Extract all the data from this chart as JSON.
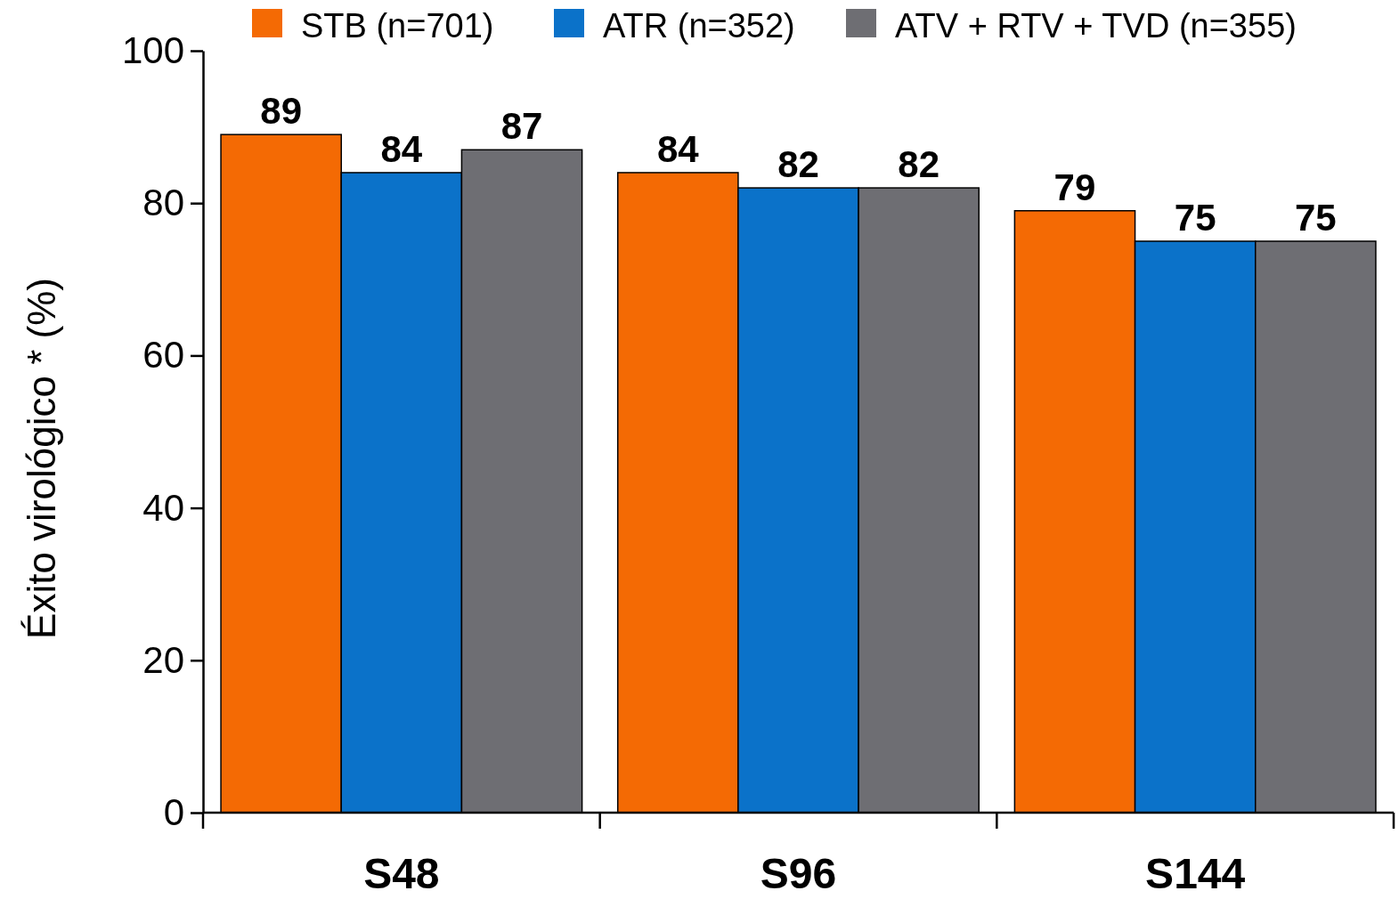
{
  "chart_data": {
    "type": "bar",
    "ylabel": "Éxito virológico * (%)",
    "categories": [
      "S48",
      "S96",
      "S144"
    ],
    "series": [
      {
        "name": "STB (n=701)",
        "color": "#f46a04",
        "values": [
          89,
          84,
          79
        ]
      },
      {
        "name": "ATR (n=352)",
        "color": "#0b72c9",
        "values": [
          84,
          82,
          75
        ]
      },
      {
        "name": "ATV + RTV + TVD (n=355)",
        "color": "#6e6e73",
        "values": [
          87,
          82,
          75
        ]
      }
    ],
    "ylim": [
      0,
      100
    ],
    "yticks": [
      0,
      20,
      40,
      60,
      80,
      100
    ],
    "data_labels": true,
    "legend": "top",
    "grid": false
  }
}
